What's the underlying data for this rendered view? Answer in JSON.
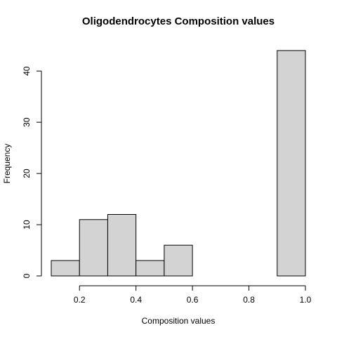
{
  "chart_data": {
    "type": "bar",
    "subtype": "histogram",
    "title": "Oligodendrocytes Composition values",
    "xlabel": "Composition values",
    "ylabel": "Frequency",
    "bins": [
      {
        "start": 0.1,
        "end": 0.2,
        "count": 3
      },
      {
        "start": 0.2,
        "end": 0.3,
        "count": 11
      },
      {
        "start": 0.3,
        "end": 0.4,
        "count": 12
      },
      {
        "start": 0.4,
        "end": 0.5,
        "count": 3
      },
      {
        "start": 0.5,
        "end": 0.6,
        "count": 6
      },
      {
        "start": 0.6,
        "end": 0.7,
        "count": 0
      },
      {
        "start": 0.7,
        "end": 0.8,
        "count": 0
      },
      {
        "start": 0.8,
        "end": 0.9,
        "count": 0
      },
      {
        "start": 0.9,
        "end": 1.0,
        "count": 44
      }
    ],
    "xlim": [
      0.1,
      1.0
    ],
    "ylim": [
      0,
      44
    ],
    "xticks": [
      "0.2",
      "0.4",
      "0.6",
      "0.8",
      "1.0"
    ],
    "yticks": [
      "0",
      "10",
      "20",
      "30",
      "40"
    ],
    "grid": false,
    "bar_color": "#d3d3d3"
  }
}
